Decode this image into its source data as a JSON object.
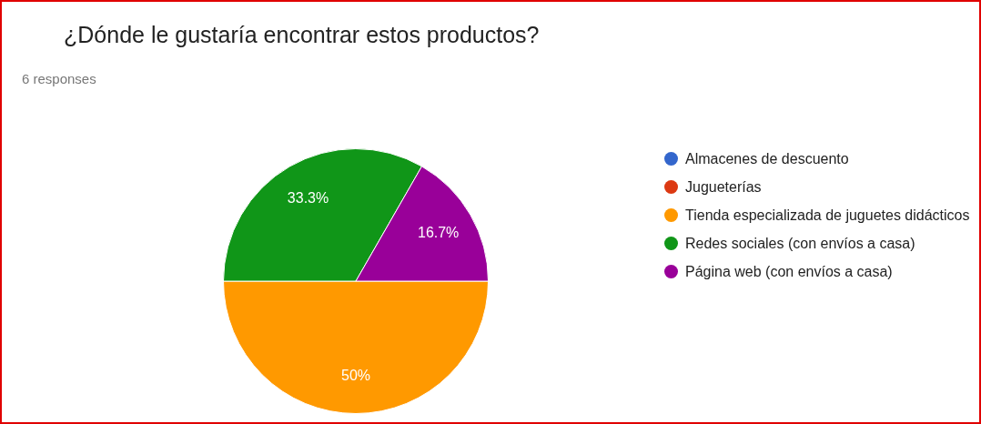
{
  "chart_data": {
    "type": "pie",
    "title": "¿Dónde le gustaría encontrar estos productos?",
    "subtitle": "6 responses",
    "categories": [
      "Almacenes de descuento",
      "Jugueterías",
      "Tienda especializada de juguetes didácticos",
      "Redes sociales (con envíos a casa)",
      "Página web (con envíos a casa)"
    ],
    "values": [
      0,
      0,
      50,
      33.3,
      16.7
    ],
    "colors": [
      "#3366cc",
      "#dc3912",
      "#ff9900",
      "#109618",
      "#990099"
    ],
    "value_labels": [
      null,
      null,
      "50%",
      "33.3%",
      "16.7%"
    ],
    "legend": "right"
  }
}
